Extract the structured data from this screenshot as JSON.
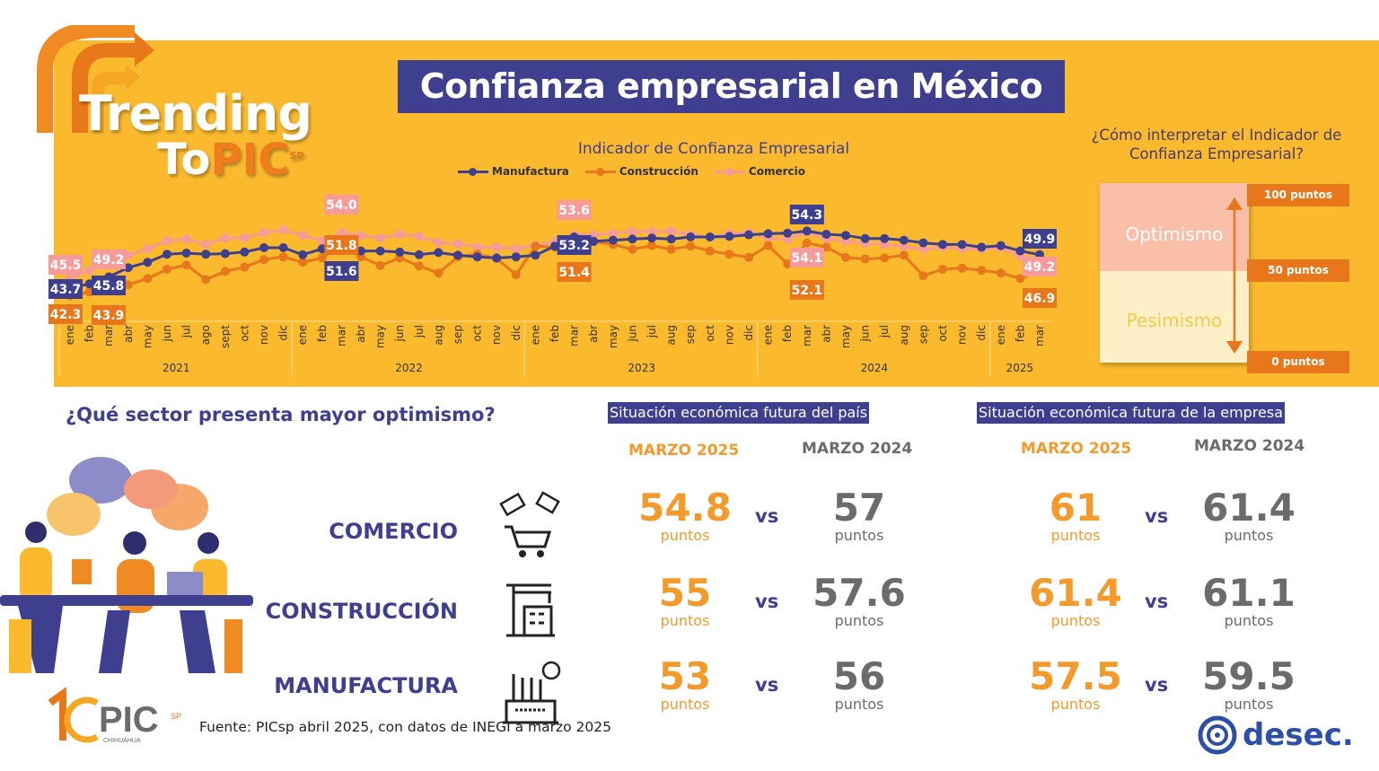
{
  "logo": {
    "line1": "Trending",
    "line2_a": "To",
    "line2_b": "PIC",
    "sup": "SP"
  },
  "title": "Confianza empresarial en México",
  "colors": {
    "band": "#FBBA2E",
    "manufactura": "#3F3F8F",
    "construccion": "#E8761A",
    "comercio": "#F79A9A",
    "accent_orange": "#F39A2B"
  },
  "chart_data": {
    "type": "line",
    "title": "Indicador de Confianza Empresarial",
    "months": [
      "ene",
      "feb",
      "mar",
      "abr",
      "may",
      "jun",
      "jul",
      "ago",
      "sept",
      "oct",
      "nov",
      "dic",
      "ene",
      "feb",
      "mar",
      "abr",
      "may",
      "jun",
      "jul",
      "aug",
      "sep",
      "oct",
      "nov",
      "dic",
      "ene",
      "feb",
      "mar",
      "abr",
      "may",
      "jun",
      "jul",
      "aug",
      "sep",
      "oct",
      "nov",
      "dic",
      "ene",
      "feb",
      "mar",
      "abr",
      "may",
      "jun",
      "jul",
      "aug",
      "sep",
      "oct",
      "nov",
      "dic",
      "ene",
      "feb",
      "mar"
    ],
    "years": [
      {
        "label": "2021",
        "months": 12
      },
      {
        "label": "2022",
        "months": 12
      },
      {
        "label": "2023",
        "months": 12
      },
      {
        "label": "2024",
        "months": 12
      },
      {
        "label": "2025",
        "months": 3
      }
    ],
    "grid": false,
    "legend_position": "top",
    "series": [
      {
        "name": "Manufactura",
        "color": "#3F3F8F",
        "values": [
          43.7,
          44.5,
          45.8,
          47.5,
          48.5,
          50.0,
          50.2,
          50.0,
          50.1,
          50.4,
          51.2,
          51.2,
          49.9,
          51.0,
          51.6,
          50.6,
          50.6,
          50.4,
          49.9,
          50.3,
          49.8,
          49.5,
          49.3,
          49.5,
          49.8,
          51.5,
          53.2,
          52.4,
          52.6,
          52.8,
          53.0,
          52.8,
          53.2,
          53.2,
          53.3,
          53.6,
          53.8,
          53.9,
          54.3,
          53.7,
          53.5,
          52.9,
          52.9,
          52.6,
          52.1,
          51.8,
          51.8,
          51.3,
          51.6,
          50.6,
          49.9
        ]
      },
      {
        "name": "Construcción",
        "color": "#E8761A",
        "values": [
          42.3,
          43.0,
          43.9,
          44.3,
          45.5,
          47.2,
          48.0,
          45.3,
          46.8,
          47.6,
          49.0,
          49.5,
          48.5,
          49.3,
          51.8,
          49.5,
          47.9,
          49.3,
          47.8,
          46.5,
          49.5,
          50.0,
          49.2,
          46.2,
          51.5,
          51.3,
          51.4,
          52.3,
          51.8,
          50.9,
          51.6,
          50.9,
          51.5,
          50.6,
          50.0,
          49.4,
          51.6,
          48.2,
          52.1,
          51.3,
          49.4,
          49.1,
          49.3,
          49.8,
          46.0,
          47.2,
          47.4,
          47.0,
          46.5,
          45.5,
          46.9
        ]
      },
      {
        "name": "Comercio",
        "color": "#F79A9A",
        "values": [
          45.5,
          47.0,
          49.2,
          49.8,
          51.0,
          52.5,
          52.8,
          51.8,
          53.0,
          53.0,
          54.0,
          54.5,
          53.5,
          52.5,
          54.0,
          53.5,
          53.0,
          53.7,
          53.3,
          52.2,
          51.9,
          51.3,
          51.3,
          51.0,
          51.7,
          52.3,
          53.6,
          53.6,
          53.9,
          54.2,
          54.2,
          54.3,
          53.6,
          53.1,
          53.9,
          54.0,
          53.0,
          52.7,
          54.1,
          52.9,
          52.4,
          52.0,
          51.8,
          51.4,
          50.9,
          51.3,
          51.0,
          51.0,
          51.2,
          49.6,
          49.2
        ]
      }
    ],
    "labeled_months": [
      "ene 2021",
      "mar 2021",
      "mar 2022",
      "mar 2023",
      "mar 2024",
      "mar 2025"
    ],
    "data_labels": {
      "Manufactura": [
        "43.7",
        "45.8",
        "51.6",
        "53.2",
        "54.3",
        "49.9"
      ],
      "Construcción": [
        "42.3",
        "43.9",
        "51.8",
        "51.4",
        "52.1",
        "46.9"
      ],
      "Comercio": [
        "45.5",
        "49.2",
        "54.0",
        "53.6",
        "54.1",
        "49.2"
      ]
    }
  },
  "interpret": {
    "question": "¿Cómo interpretar el Indicador de Confianza Empresarial?",
    "optimismo": "Optimismo",
    "pesimismo": "Pesimismo",
    "p100": "100 puntos",
    "p50": "50 puntos",
    "p0": "0 puntos"
  },
  "bottom": {
    "question": "¿Qué sector presenta mayor optimismo?",
    "pais": {
      "header": "Situación económica futura del país",
      "col1": "MARZO 2025",
      "col2": "MARZO 2024"
    },
    "empresa": {
      "header": "Situación económica futura de la empresa",
      "col1": "MARZO 2025",
      "col2": "MARZO 2024"
    },
    "vs": "vs",
    "unit": "puntos",
    "rows": [
      {
        "sector": "COMERCIO",
        "icon": "shopping-cart-icon",
        "pais_2025": "54.8",
        "pais_2024": "57",
        "empresa_2025": "61",
        "empresa_2024": "61.4"
      },
      {
        "sector": "CONSTRUCCIÓN",
        "icon": "construction-crane-icon",
        "pais_2025": "55",
        "pais_2024": "57.6",
        "empresa_2025": "61.4",
        "empresa_2024": "61.1"
      },
      {
        "sector": "MANUFACTURA",
        "icon": "factory-icon",
        "pais_2025": "53",
        "pais_2024": "56",
        "empresa_2025": "57.5",
        "empresa_2024": "59.5"
      }
    ]
  },
  "footer": {
    "source": "Fuente: PICsp abril 2025, con datos de INEGI a marzo 2025",
    "pic_logo": "10 años PIC SP CHIHUAHUA",
    "desec": "desec."
  }
}
